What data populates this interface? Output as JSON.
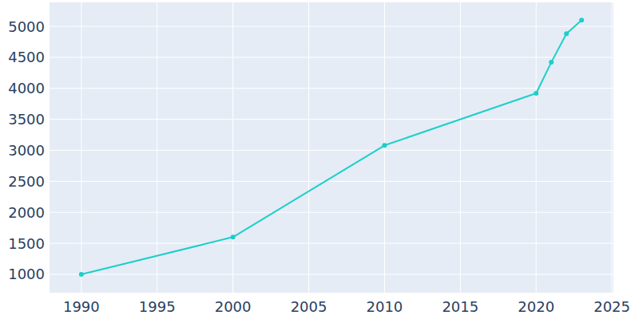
{
  "chart_data": {
    "type": "line",
    "x": [
      1990,
      2000,
      2010,
      2020,
      2021,
      2022,
      2023
    ],
    "values": [
      1000,
      1600,
      3080,
      3920,
      4420,
      4880,
      5100
    ],
    "color": "#1ccfc9",
    "marker": "circle",
    "xlim": [
      1987.9,
      2025.1
    ],
    "xticks": [
      1990,
      1995,
      2000,
      2005,
      2010,
      2015,
      2020,
      2025
    ],
    "ylim": [
      704,
      5386
    ],
    "yticks": [
      1000,
      1500,
      2000,
      2500,
      3000,
      3500,
      4000,
      4500,
      5000
    ],
    "grid": true
  }
}
